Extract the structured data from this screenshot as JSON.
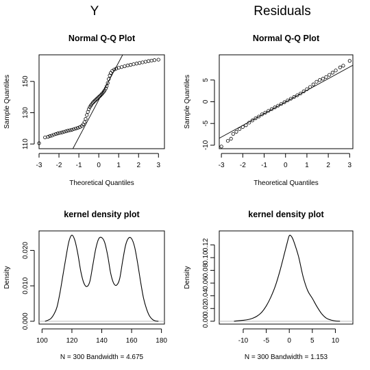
{
  "column_titles": [
    "Y",
    "Residuals"
  ],
  "chart_data": [
    {
      "type": "scatter",
      "title": "Normal Q-Q Plot",
      "xlabel": "Theoretical Quantiles",
      "ylabel": "Sample Quantiles",
      "xlim": [
        -3.0,
        3.3
      ],
      "ylim": [
        107,
        167
      ],
      "xticks": [
        -3,
        -2,
        -1,
        0,
        1,
        2,
        3
      ],
      "xtick_labels": [
        "-3",
        "-2",
        "-1",
        "0",
        "1",
        "2",
        "3"
      ],
      "yticks": [
        110,
        130,
        150
      ],
      "ytick_labels": [
        "110",
        "130",
        "150"
      ],
      "points": [
        [
          -3.0,
          110.5
        ],
        [
          -2.7,
          114.2
        ],
        [
          -2.55,
          114.6
        ],
        [
          -2.45,
          115.1
        ],
        [
          -2.35,
          115.4
        ],
        [
          -2.25,
          116.0
        ],
        [
          -2.15,
          116.4
        ],
        [
          -2.05,
          116.8
        ],
        [
          -1.95,
          117.1
        ],
        [
          -1.85,
          117.4
        ],
        [
          -1.75,
          117.8
        ],
        [
          -1.65,
          118.1
        ],
        [
          -1.55,
          118.5
        ],
        [
          -1.45,
          118.8
        ],
        [
          -1.35,
          119.1
        ],
        [
          -1.25,
          119.5
        ],
        [
          -1.15,
          119.9
        ],
        [
          -1.05,
          120.3
        ],
        [
          -0.95,
          120.8
        ],
        [
          -0.85,
          121.5
        ],
        [
          -0.78,
          122.5
        ],
        [
          -0.72,
          124.0
        ],
        [
          -0.66,
          126.0
        ],
        [
          -0.6,
          128.5
        ],
        [
          -0.55,
          130.5
        ],
        [
          -0.5,
          132.3
        ],
        [
          -0.45,
          133.6
        ],
        [
          -0.4,
          134.6
        ],
        [
          -0.35,
          135.5
        ],
        [
          -0.3,
          136.3
        ],
        [
          -0.25,
          137.0
        ],
        [
          -0.2,
          137.6
        ],
        [
          -0.15,
          138.2
        ],
        [
          -0.1,
          138.8
        ],
        [
          -0.05,
          139.4
        ],
        [
          0.0,
          140.0
        ],
        [
          0.05,
          140.6
        ],
        [
          0.1,
          141.2
        ],
        [
          0.15,
          141.9
        ],
        [
          0.2,
          142.6
        ],
        [
          0.25,
          143.4
        ],
        [
          0.3,
          144.3
        ],
        [
          0.35,
          145.5
        ],
        [
          0.4,
          147.0
        ],
        [
          0.45,
          149.0
        ],
        [
          0.5,
          151.5
        ],
        [
          0.55,
          153.8
        ],
        [
          0.6,
          155.4
        ],
        [
          0.68,
          156.8
        ],
        [
          0.78,
          157.6
        ],
        [
          0.88,
          158.2
        ],
        [
          1.0,
          158.7
        ],
        [
          1.15,
          159.2
        ],
        [
          1.3,
          159.7
        ],
        [
          1.45,
          160.2
        ],
        [
          1.6,
          160.6
        ],
        [
          1.75,
          161.0
        ],
        [
          1.9,
          161.4
        ],
        [
          2.05,
          161.8
        ],
        [
          2.2,
          162.2
        ],
        [
          2.35,
          162.6
        ],
        [
          2.5,
          163.0
        ],
        [
          2.65,
          163.3
        ],
        [
          2.8,
          163.6
        ],
        [
          3.0,
          163.9
        ]
      ],
      "reference_line": [
        [
          -1.3,
          107
        ],
        [
          1.2,
          167
        ]
      ]
    },
    {
      "type": "scatter",
      "title": "Normal Q-Q Plot",
      "xlabel": "Theoretical Quantiles",
      "ylabel": "Sample Quantiles",
      "xlim": [
        -3.1,
        3.15
      ],
      "ylim": [
        -10.8,
        10.8
      ],
      "xticks": [
        -3,
        -2,
        -1,
        0,
        1,
        2,
        3
      ],
      "xtick_labels": [
        "-3",
        "-2",
        "-1",
        "0",
        "1",
        "2",
        "3"
      ],
      "yticks": [
        -10,
        -5,
        0,
        5
      ],
      "ytick_labels": [
        "-10",
        "-5",
        "0",
        "5"
      ],
      "points": [
        [
          -3.0,
          -10.3
        ],
        [
          -2.7,
          -9.0
        ],
        [
          -2.55,
          -8.5
        ],
        [
          -2.45,
          -7.4
        ],
        [
          -2.3,
          -6.9
        ],
        [
          -2.15,
          -6.3
        ],
        [
          -2.0,
          -5.8
        ],
        [
          -1.85,
          -5.4
        ],
        [
          -1.7,
          -4.8
        ],
        [
          -1.55,
          -4.3
        ],
        [
          -1.4,
          -3.8
        ],
        [
          -1.25,
          -3.4
        ],
        [
          -1.1,
          -2.9
        ],
        [
          -0.95,
          -2.5
        ],
        [
          -0.8,
          -2.1
        ],
        [
          -0.65,
          -1.7
        ],
        [
          -0.5,
          -1.3
        ],
        [
          -0.35,
          -0.9
        ],
        [
          -0.2,
          -0.5
        ],
        [
          -0.05,
          -0.1
        ],
        [
          0.1,
          0.3
        ],
        [
          0.25,
          0.7
        ],
        [
          0.4,
          1.1
        ],
        [
          0.55,
          1.5
        ],
        [
          0.7,
          1.9
        ],
        [
          0.85,
          2.4
        ],
        [
          1.0,
          2.9
        ],
        [
          1.15,
          3.4
        ],
        [
          1.3,
          4.0
        ],
        [
          1.45,
          4.6
        ],
        [
          1.6,
          5.0
        ],
        [
          1.75,
          5.3
        ],
        [
          1.9,
          5.7
        ],
        [
          2.05,
          6.2
        ],
        [
          2.2,
          6.7
        ],
        [
          2.35,
          7.2
        ],
        [
          2.55,
          7.9
        ],
        [
          2.7,
          8.3
        ],
        [
          3.0,
          9.4
        ]
      ],
      "reference_line": [
        [
          -3.1,
          -8.4
        ],
        [
          3.15,
          8.4
        ]
      ]
    },
    {
      "type": "line",
      "title": "kernel density plot",
      "xlabel": "N = 300   Bandwidth = 4.675",
      "ylabel": "Density",
      "xlim": [
        98,
        182
      ],
      "ylim": [
        -0.0008,
        0.0255
      ],
      "xticks": [
        100,
        120,
        140,
        160,
        180
      ],
      "xtick_labels": [
        "100",
        "120",
        "140",
        "160",
        "180"
      ],
      "yticks": [
        0.0,
        0.01,
        0.02
      ],
      "ytick_labels": [
        "0.000",
        "0.010",
        "0.020"
      ],
      "points": [
        [
          102,
          0.0
        ],
        [
          104,
          0.0003
        ],
        [
          106,
          0.0008
        ],
        [
          108,
          0.002
        ],
        [
          110,
          0.004
        ],
        [
          112,
          0.008
        ],
        [
          114,
          0.013
        ],
        [
          116,
          0.018
        ],
        [
          118,
          0.0225
        ],
        [
          120,
          0.0243
        ],
        [
          122,
          0.0228
        ],
        [
          124,
          0.019
        ],
        [
          126,
          0.014
        ],
        [
          128,
          0.0108
        ],
        [
          130,
          0.0098
        ],
        [
          132,
          0.0112
        ],
        [
          134,
          0.0158
        ],
        [
          136,
          0.0205
        ],
        [
          138,
          0.0233
        ],
        [
          140,
          0.0236
        ],
        [
          142,
          0.0222
        ],
        [
          144,
          0.0185
        ],
        [
          146,
          0.0135
        ],
        [
          148,
          0.0107
        ],
        [
          150,
          0.0102
        ],
        [
          152,
          0.012
        ],
        [
          154,
          0.017
        ],
        [
          156,
          0.0215
        ],
        [
          158,
          0.0235
        ],
        [
          160,
          0.0233
        ],
        [
          162,
          0.021
        ],
        [
          164,
          0.0165
        ],
        [
          166,
          0.0112
        ],
        [
          168,
          0.0065
        ],
        [
          170,
          0.0035
        ],
        [
          172,
          0.0015
        ],
        [
          174,
          0.0005
        ],
        [
          176,
          0.0001
        ],
        [
          178,
          0.0
        ]
      ]
    },
    {
      "type": "line",
      "title": "kernel density plot",
      "xlabel": "N = 300   Bandwidth = 1.153",
      "ylabel": "Density",
      "xlim": [
        -15.2,
        13.8
      ],
      "ylim": [
        -0.0045,
        0.142
      ],
      "xticks": [
        -10,
        -5,
        0,
        5,
        10
      ],
      "xtick_labels": [
        "-10",
        "-5",
        "0",
        "5",
        "10"
      ],
      "yticks": [
        0.0,
        0.02,
        0.04,
        0.06,
        0.08,
        0.1,
        0.12
      ],
      "ytick_labels": [
        "0.00",
        "0.02",
        "0.04",
        "0.06",
        "0.08",
        "0.10",
        "0.12"
      ],
      "points": [
        [
          -12,
          0.0
        ],
        [
          -11,
          0.0008
        ],
        [
          -10,
          0.0015
        ],
        [
          -9,
          0.0025
        ],
        [
          -8,
          0.0045
        ],
        [
          -7,
          0.008
        ],
        [
          -6,
          0.014
        ],
        [
          -5,
          0.024
        ],
        [
          -4,
          0.038
        ],
        [
          -3,
          0.056
        ],
        [
          -2,
          0.08
        ],
        [
          -1,
          0.108
        ],
        [
          -0.5,
          0.122
        ],
        [
          0,
          0.1345
        ],
        [
          0.5,
          0.133
        ],
        [
          1,
          0.125
        ],
        [
          2,
          0.102
        ],
        [
          3,
          0.07
        ],
        [
          4,
          0.048
        ],
        [
          5,
          0.036
        ],
        [
          6,
          0.023
        ],
        [
          7,
          0.012
        ],
        [
          8,
          0.005
        ],
        [
          9,
          0.002
        ],
        [
          10,
          0.0005
        ],
        [
          11,
          0.0
        ]
      ]
    }
  ]
}
